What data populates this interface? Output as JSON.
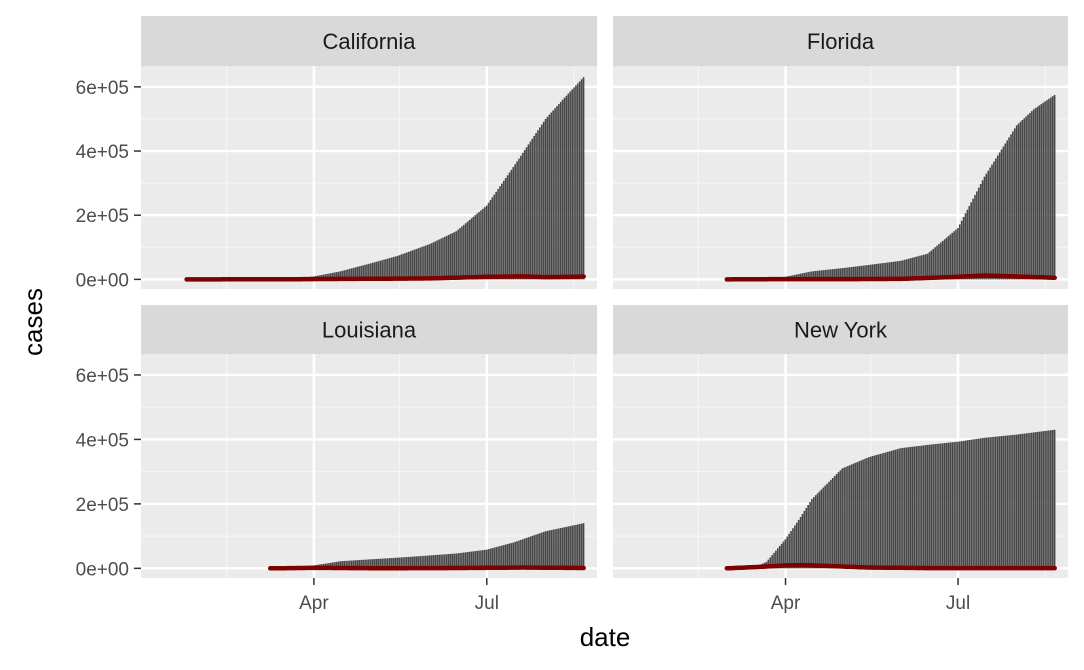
{
  "chart_data": {
    "type": "bar",
    "layout": "facet-grid-2x2",
    "xlabel": "date",
    "ylabel": "cases",
    "x_tick_labels": [
      "Apr",
      "Jul"
    ],
    "y_tick_labels": [
      "0e+00",
      "2e+05",
      "4e+05",
      "6e+05"
    ],
    "y_ticks": [
      0,
      200000,
      400000,
      600000
    ],
    "ylim": [
      -30000,
      665000
    ],
    "xlim": [
      "2020-01-01",
      "2020-08-28"
    ],
    "x_ticks": [
      "2020-04-01",
      "2020-07-01"
    ],
    "x_minor_ticks": [
      "2020-02-15",
      "2020-05-16",
      "2020-08-16"
    ],
    "bar_color": "#474747",
    "line_color": "#7f0000",
    "panel_background": "#ebebeb",
    "strip_background": "#d9d9d9",
    "series_kinds": {
      "bars": "cumulative cases",
      "line": "daily new cases"
    },
    "panels": [
      {
        "name": "California",
        "start_date": "2020-01-25",
        "end_date": "2020-08-21",
        "cumulative_points": [
          [
            "2020-01-25",
            0
          ],
          [
            "2020-03-01",
            50
          ],
          [
            "2020-03-15",
            400
          ],
          [
            "2020-04-01",
            9000
          ],
          [
            "2020-04-15",
            25000
          ],
          [
            "2020-05-01",
            50000
          ],
          [
            "2020-05-15",
            73000
          ],
          [
            "2020-06-01",
            110000
          ],
          [
            "2020-06-15",
            150000
          ],
          [
            "2020-07-01",
            230000
          ],
          [
            "2020-07-15",
            350000
          ],
          [
            "2020-08-01",
            500000
          ],
          [
            "2020-08-10",
            560000
          ],
          [
            "2020-08-21",
            630000
          ]
        ],
        "daily_points": [
          [
            "2020-01-25",
            0
          ],
          [
            "2020-03-15",
            200
          ],
          [
            "2020-04-01",
            1000
          ],
          [
            "2020-05-01",
            1800
          ],
          [
            "2020-06-01",
            3000
          ],
          [
            "2020-07-01",
            8000
          ],
          [
            "2020-07-20",
            9500
          ],
          [
            "2020-08-01",
            7000
          ],
          [
            "2020-08-15",
            8000
          ],
          [
            "2020-08-21",
            9000
          ]
        ]
      },
      {
        "name": "Florida",
        "start_date": "2020-03-01",
        "end_date": "2020-08-21",
        "cumulative_points": [
          [
            "2020-03-01",
            0
          ],
          [
            "2020-03-15",
            500
          ],
          [
            "2020-04-01",
            8000
          ],
          [
            "2020-04-15",
            25000
          ],
          [
            "2020-05-01",
            35000
          ],
          [
            "2020-05-15",
            45000
          ],
          [
            "2020-06-01",
            58000
          ],
          [
            "2020-06-15",
            80000
          ],
          [
            "2020-07-01",
            160000
          ],
          [
            "2020-07-15",
            320000
          ],
          [
            "2020-08-01",
            480000
          ],
          [
            "2020-08-10",
            530000
          ],
          [
            "2020-08-21",
            575000
          ]
        ],
        "daily_points": [
          [
            "2020-03-01",
            0
          ],
          [
            "2020-04-01",
            1000
          ],
          [
            "2020-05-01",
            800
          ],
          [
            "2020-06-01",
            1500
          ],
          [
            "2020-07-01",
            8000
          ],
          [
            "2020-07-15",
            12000
          ],
          [
            "2020-08-01",
            9000
          ],
          [
            "2020-08-21",
            5000
          ]
        ]
      },
      {
        "name": "Louisiana",
        "start_date": "2020-03-09",
        "end_date": "2020-08-21",
        "cumulative_points": [
          [
            "2020-03-09",
            0
          ],
          [
            "2020-03-20",
            1000
          ],
          [
            "2020-04-01",
            9000
          ],
          [
            "2020-04-15",
            22000
          ],
          [
            "2020-05-01",
            28000
          ],
          [
            "2020-05-15",
            33000
          ],
          [
            "2020-06-01",
            40000
          ],
          [
            "2020-06-15",
            46000
          ],
          [
            "2020-07-01",
            58000
          ],
          [
            "2020-07-15",
            80000
          ],
          [
            "2020-08-01",
            115000
          ],
          [
            "2020-08-21",
            140000
          ]
        ],
        "daily_points": [
          [
            "2020-03-09",
            0
          ],
          [
            "2020-04-01",
            1500
          ],
          [
            "2020-05-01",
            500
          ],
          [
            "2020-06-01",
            600
          ],
          [
            "2020-07-01",
            1500
          ],
          [
            "2020-07-20",
            2500
          ],
          [
            "2020-08-21",
            1000
          ]
        ]
      },
      {
        "name": "New York",
        "start_date": "2020-03-01",
        "end_date": "2020-08-21",
        "cumulative_points": [
          [
            "2020-03-01",
            0
          ],
          [
            "2020-03-15",
            1500
          ],
          [
            "2020-03-22",
            20000
          ],
          [
            "2020-04-01",
            90000
          ],
          [
            "2020-04-08",
            150000
          ],
          [
            "2020-04-15",
            215000
          ],
          [
            "2020-05-01",
            310000
          ],
          [
            "2020-05-15",
            345000
          ],
          [
            "2020-06-01",
            373000
          ],
          [
            "2020-06-15",
            383000
          ],
          [
            "2020-07-01",
            393000
          ],
          [
            "2020-07-15",
            405000
          ],
          [
            "2020-08-01",
            415000
          ],
          [
            "2020-08-21",
            430000
          ]
        ],
        "daily_points": [
          [
            "2020-03-01",
            0
          ],
          [
            "2020-03-20",
            5000
          ],
          [
            "2020-04-01",
            9000
          ],
          [
            "2020-04-10",
            10000
          ],
          [
            "2020-04-25",
            7000
          ],
          [
            "2020-05-15",
            2500
          ],
          [
            "2020-06-15",
            800
          ],
          [
            "2020-08-21",
            600
          ]
        ]
      }
    ]
  }
}
